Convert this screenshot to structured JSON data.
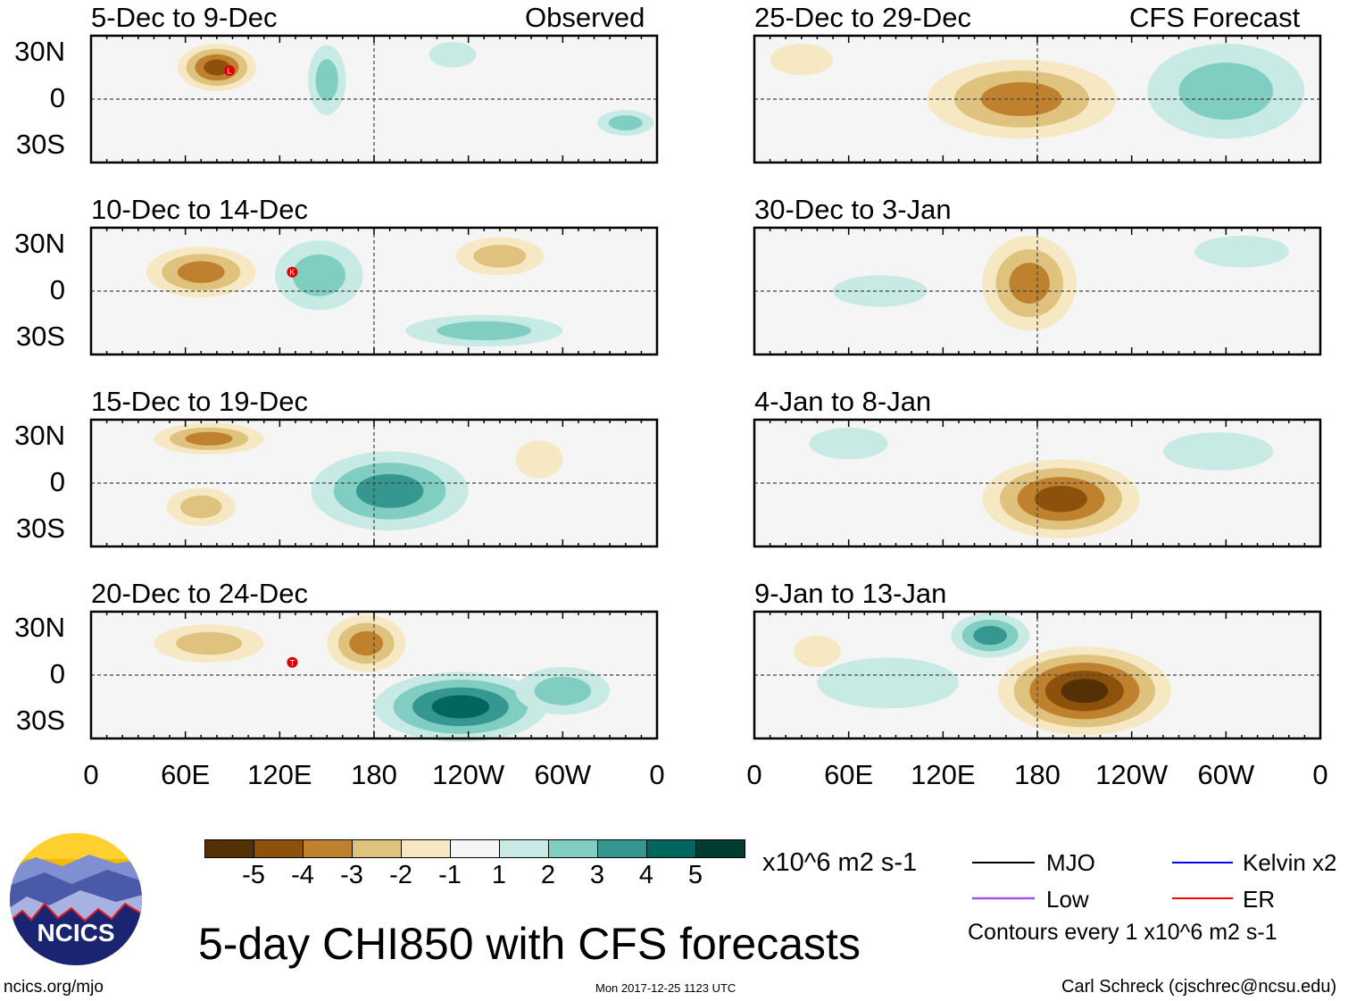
{
  "title": "5-day CHI850 with CFS forecasts",
  "left_header": "Observed",
  "right_header": "CFS Forecast",
  "units": "x10^6 m2 s-1",
  "lat_labels": [
    "30N",
    "0",
    "30S"
  ],
  "lon_labels": [
    "0",
    "60E",
    "120E",
    "180",
    "120W",
    "60W",
    "0"
  ],
  "legend": {
    "mjo": "MJO",
    "kelvin": "Kelvin x2",
    "low": "Low",
    "er": "ER",
    "contours": "Contours every 1 x10^6 m2 s-1",
    "colors": {
      "mjo": "#000000",
      "kelvin": "#0000ff",
      "low": "#9955ee",
      "er": "#ff0000"
    }
  },
  "colorbar": {
    "labels": [
      "-5",
      "-4",
      "-3",
      "-2",
      "-1",
      "1",
      "2",
      "3",
      "4",
      "5"
    ],
    "colors": [
      "#543005",
      "#8c510a",
      "#bf812d",
      "#dfc27d",
      "#f6e8c3",
      "#f5f5f5",
      "#c7eae5",
      "#80cdc1",
      "#35978f",
      "#01665e",
      "#003c30"
    ]
  },
  "footer": {
    "site": "ncics.org/mjo",
    "timestamp": "Mon 2017-12-25 1123 UTC",
    "author": "Carl Schreck (cjschrec@ncsu.edu)",
    "logo_text": "NCICS"
  },
  "chart_data": {
    "type": "heatmap",
    "lon_range": [
      0,
      360
    ],
    "lat_range": [
      -40,
      40
    ],
    "panels": [
      {
        "title": "5-Dec to 9-Dec",
        "features": [
          [
            80,
            20,
            25,
            15,
            -4
          ],
          [
            150,
            12,
            12,
            22,
            2
          ],
          [
            340,
            -15,
            18,
            8,
            2
          ],
          [
            230,
            28,
            15,
            8,
            1
          ]
        ],
        "storms": [
          [
            88,
            18,
            "L"
          ]
        ]
      },
      {
        "title": "10-Dec to 14-Dec",
        "features": [
          [
            70,
            12,
            35,
            16,
            -3
          ],
          [
            145,
            10,
            28,
            22,
            2
          ],
          [
            250,
            -25,
            50,
            10,
            2
          ],
          [
            260,
            22,
            28,
            12,
            -2
          ]
        ],
        "storms": [
          [
            128,
            12,
            "K"
          ]
        ]
      },
      {
        "title": "15-Dec to 19-Dec",
        "features": [
          [
            75,
            28,
            35,
            10,
            -3
          ],
          [
            70,
            -15,
            22,
            12,
            -2
          ],
          [
            190,
            -5,
            50,
            25,
            3
          ],
          [
            285,
            15,
            15,
            12,
            -1
          ]
        ],
        "storms": []
      },
      {
        "title": "20-Dec to 24-Dec",
        "features": [
          [
            75,
            20,
            35,
            12,
            -2
          ],
          [
            175,
            20,
            25,
            18,
            -3
          ],
          [
            235,
            -20,
            55,
            22,
            4
          ],
          [
            300,
            -10,
            30,
            15,
            2
          ]
        ],
        "storms": [
          [
            128,
            8,
            "T"
          ]
        ]
      },
      {
        "title": "25-Dec to 29-Dec",
        "features": [
          [
            170,
            0,
            60,
            25,
            -3
          ],
          [
            300,
            5,
            50,
            30,
            2
          ],
          [
            30,
            25,
            20,
            10,
            -1
          ]
        ],
        "storms": []
      },
      {
        "title": "30-Dec to 3-Jan",
        "features": [
          [
            175,
            5,
            30,
            30,
            -3
          ],
          [
            310,
            25,
            30,
            10,
            1
          ],
          [
            80,
            0,
            30,
            10,
            1
          ]
        ],
        "storms": []
      },
      {
        "title": "4-Jan to 8-Jan",
        "features": [
          [
            195,
            -10,
            50,
            25,
            -4
          ],
          [
            295,
            20,
            35,
            12,
            1
          ],
          [
            60,
            25,
            25,
            10,
            1
          ]
        ],
        "storms": []
      },
      {
        "title": "9-Jan to 13-Jan",
        "features": [
          [
            210,
            -10,
            55,
            28,
            -5
          ],
          [
            150,
            25,
            25,
            14,
            3
          ],
          [
            85,
            -5,
            45,
            16,
            1
          ],
          [
            40,
            15,
            15,
            10,
            -1
          ]
        ],
        "storms": []
      }
    ]
  }
}
